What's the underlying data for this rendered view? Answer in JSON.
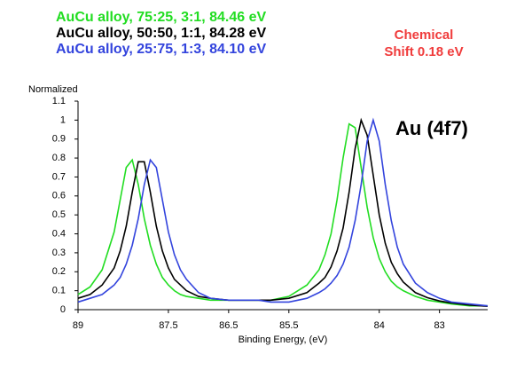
{
  "chart_data": {
    "type": "line",
    "y_label": "Normalized",
    "x_label": "Binding Energy, (eV)",
    "annotations": [
      "Chemical",
      "Shift 0.18 eV",
      "Au (4f7)"
    ],
    "annotation_color": "#f03c3c",
    "x": [
      89,
      88.8,
      88.6,
      88.4,
      88.3,
      88.2,
      88.1,
      88.0,
      87.9,
      87.8,
      87.7,
      87.6,
      87.5,
      87.4,
      87.3,
      87.2,
      87.0,
      86.8,
      86.5,
      86.2,
      86.0,
      85.8,
      85.5,
      85.2,
      85.0,
      84.9,
      84.8,
      84.7,
      84.6,
      84.5,
      84.4,
      84.3,
      84.2,
      84.1,
      84.0,
      83.9,
      83.8,
      83.7,
      83.6,
      83.4,
      83.2,
      83.0,
      82.8,
      82.5,
      82.2
    ],
    "series": [
      {
        "name": "AuCu alloy, 75:25, 3:1, 84.46 eV",
        "color": "#22dd22",
        "values": [
          0.08,
          0.12,
          0.21,
          0.41,
          0.58,
          0.75,
          0.79,
          0.66,
          0.48,
          0.34,
          0.24,
          0.17,
          0.13,
          0.1,
          0.08,
          0.07,
          0.06,
          0.05,
          0.05,
          0.05,
          0.05,
          0.05,
          0.07,
          0.13,
          0.21,
          0.29,
          0.4,
          0.58,
          0.8,
          0.98,
          0.96,
          0.75,
          0.54,
          0.38,
          0.27,
          0.2,
          0.15,
          0.12,
          0.1,
          0.07,
          0.05,
          0.04,
          0.03,
          0.02,
          0.02
        ]
      },
      {
        "name": "AuCu alloy, 50:50, 1:1, 84.28 eV",
        "color": "#000000",
        "values": [
          0.06,
          0.08,
          0.13,
          0.22,
          0.31,
          0.44,
          0.62,
          0.78,
          0.78,
          0.62,
          0.44,
          0.31,
          0.22,
          0.16,
          0.13,
          0.1,
          0.07,
          0.06,
          0.05,
          0.05,
          0.05,
          0.05,
          0.06,
          0.09,
          0.14,
          0.17,
          0.225,
          0.31,
          0.43,
          0.62,
          0.85,
          1.0,
          0.92,
          0.71,
          0.5,
          0.35,
          0.25,
          0.19,
          0.145,
          0.09,
          0.063,
          0.046,
          0.035,
          0.024,
          0.018
        ]
      },
      {
        "name": "AuCu alloy, 25:75, 1:3, 84.10 eV",
        "color": "#3344dd",
        "values": [
          0.04,
          0.06,
          0.08,
          0.13,
          0.17,
          0.24,
          0.34,
          0.48,
          0.66,
          0.79,
          0.75,
          0.58,
          0.41,
          0.29,
          0.21,
          0.16,
          0.09,
          0.06,
          0.05,
          0.05,
          0.05,
          0.04,
          0.04,
          0.06,
          0.09,
          0.11,
          0.14,
          0.18,
          0.24,
          0.33,
          0.47,
          0.66,
          0.89,
          1.0,
          0.89,
          0.66,
          0.47,
          0.33,
          0.24,
          0.14,
          0.09,
          0.06,
          0.04,
          0.03,
          0.02
        ]
      }
    ],
    "xlim": [
      89,
      82.2
    ],
    "xticks": [
      89,
      87.5,
      86.5,
      85.5,
      84,
      83
    ],
    "ylim": [
      0,
      1.1
    ],
    "yticks": [
      0,
      0.1,
      0.2,
      0.3,
      0.4,
      0.5,
      0.6,
      0.7,
      0.8,
      0.9,
      1,
      1.1
    ],
    "grid": false
  }
}
